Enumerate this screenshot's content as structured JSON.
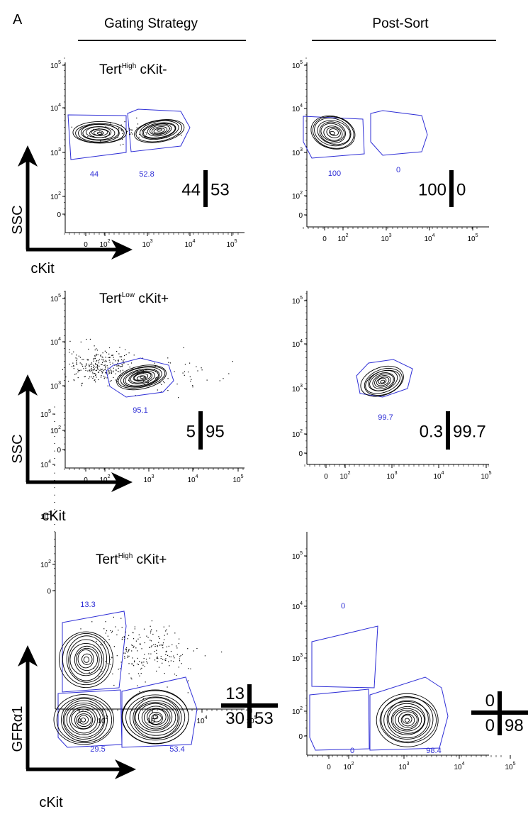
{
  "figure": {
    "panel_letter": "A",
    "columns": [
      {
        "header": "Gating Strategy"
      },
      {
        "header": "Post-Sort"
      }
    ],
    "colors": {
      "gate": "#2f2fd6",
      "ink": "#000000",
      "axis": "#000000"
    },
    "y_ticks": [
      "0",
      "10",
      "10",
      "10",
      "10"
    ],
    "y_tick_exps": [
      "",
      "2",
      "3",
      "4",
      "5"
    ],
    "x_ticks_a": [
      "0",
      "10"
    ],
    "x_ticks_b": [
      "0",
      "10"
    ],
    "x_ticks_exps": [
      "",
      "2",
      "3",
      "4",
      "5"
    ]
  },
  "rows": [
    {
      "title_main": "Tert",
      "title_sup": "High",
      "title_rest": " cKit-",
      "y_axis_label": "SSC",
      "x_axis_label": "cKit",
      "left_gates": [
        "44",
        "52.8"
      ],
      "left_summary": {
        "a": "44",
        "b": "53"
      },
      "right_gates": [
        "100",
        "0"
      ],
      "right_summary": {
        "a": "100",
        "b": "0"
      }
    },
    {
      "title_main": "Tert",
      "title_sup": "Low",
      "title_rest": " cKit+",
      "y_axis_label": "SSC",
      "x_axis_label": "cKit",
      "left_gates": [
        "95.1"
      ],
      "left_summary": {
        "a": "5",
        "b": "95"
      },
      "right_gates": [
        "99.7"
      ],
      "right_summary": {
        "a": "0.3",
        "b": "99.7"
      }
    },
    {
      "title_main": "Tert",
      "title_sup": "High",
      "title_rest": " cKit+",
      "y_axis_label": "GFRα1",
      "x_axis_label": "cKit",
      "left_gates": [
        "13.3",
        "29.5",
        "53.4"
      ],
      "left_summary": {
        "tl": "13",
        "bl": "30",
        "br": "53"
      },
      "right_gates": [
        "0",
        "0",
        "98.4"
      ],
      "right_summary": {
        "tl": "0",
        "bl": "0",
        "br": "98"
      }
    }
  ]
}
